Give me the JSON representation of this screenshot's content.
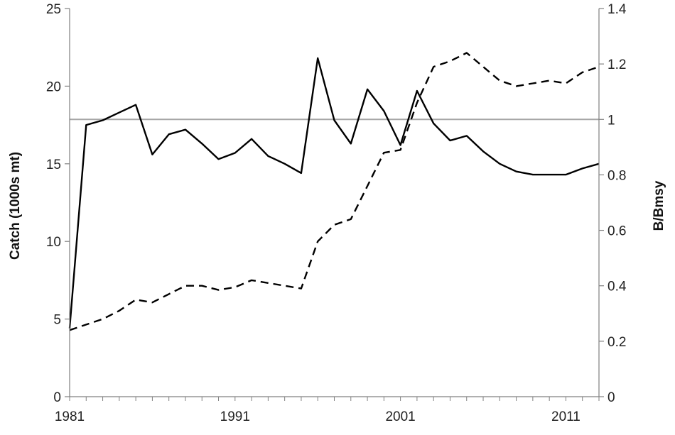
{
  "chart_data": {
    "type": "line",
    "xlabel": "",
    "ylabel": "Catch (1000s mt)",
    "y2label": "B/Bmsy",
    "xlim": [
      1981,
      2013
    ],
    "ylim": [
      0,
      25
    ],
    "y2lim": [
      0,
      1.4
    ],
    "x_ticks": [
      1981,
      1991,
      2001,
      2011
    ],
    "y_ticks": [
      0,
      5,
      10,
      15,
      20,
      25
    ],
    "y2_ticks": [
      0,
      0.2,
      0.4,
      0.6,
      0.8,
      1,
      1.2,
      1.4
    ],
    "y2_tick_labels": [
      "0",
      "0.2",
      "0.4",
      "0.6",
      "0.8",
      "1",
      "1.2",
      "1.4"
    ],
    "grid": false,
    "legend": "none",
    "reference_line": {
      "axis": "y2",
      "value": 1.0,
      "color": "#a6a6a6"
    },
    "series": [
      {
        "axis": "y",
        "style": "solid",
        "color": "#000000",
        "x": [
          1981,
          1982,
          1983,
          1984,
          1985,
          1986,
          1987,
          1988,
          1989,
          1990,
          1991,
          1992,
          1993,
          1994,
          1995,
          1996,
          1997,
          1998,
          1999,
          2000,
          2001,
          2002,
          2003,
          2004,
          2005,
          2006,
          2007,
          2008,
          2009,
          2010,
          2011,
          2012,
          2013
        ],
        "values": [
          4.4,
          17.5,
          17.8,
          18.3,
          18.8,
          15.6,
          16.9,
          17.2,
          16.3,
          15.3,
          15.7,
          16.6,
          15.5,
          15.0,
          14.4,
          21.8,
          17.8,
          16.3,
          19.8,
          18.4,
          16.2,
          19.7,
          17.6,
          16.5,
          16.8,
          15.8,
          15.0,
          14.5,
          14.3,
          14.3,
          14.3,
          14.7,
          15.0
        ]
      },
      {
        "axis": "y2",
        "style": "dashed",
        "color": "#000000",
        "x": [
          1981,
          1982,
          1983,
          1984,
          1985,
          1986,
          1987,
          1988,
          1989,
          1990,
          1991,
          1992,
          1993,
          1994,
          1995,
          1996,
          1997,
          1998,
          1999,
          2000,
          2001,
          2002,
          2003,
          2004,
          2005,
          2006,
          2007,
          2008,
          2009,
          2010,
          2011,
          2012,
          2013
        ],
        "values": [
          0.24,
          0.26,
          0.28,
          0.31,
          0.35,
          0.34,
          0.37,
          0.4,
          0.4,
          0.385,
          0.395,
          0.42,
          0.41,
          0.4,
          0.39,
          0.56,
          0.62,
          0.64,
          0.76,
          0.88,
          0.89,
          1.06,
          1.19,
          1.21,
          1.24,
          1.19,
          1.14,
          1.12,
          1.13,
          1.14,
          1.13,
          1.17,
          1.19
        ]
      }
    ]
  }
}
